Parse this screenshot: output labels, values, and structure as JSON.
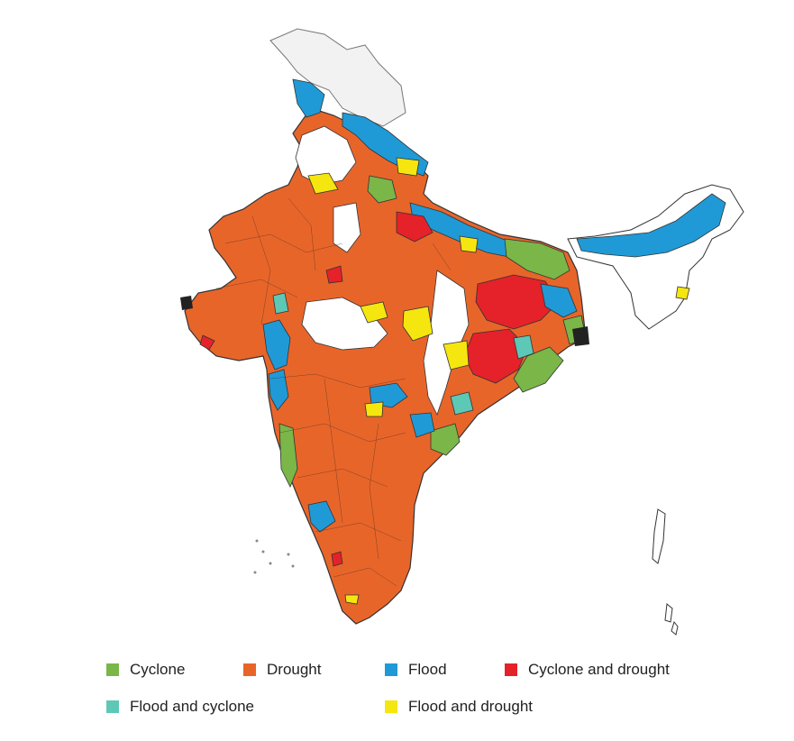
{
  "legend": {
    "items": [
      {
        "key": "cyclone",
        "label": "Cyclone",
        "color": "#7ab648"
      },
      {
        "key": "drought",
        "label": "Drought",
        "color": "#e8652a"
      },
      {
        "key": "flood",
        "label": "Flood",
        "color": "#1f9ad6"
      },
      {
        "key": "cyclone_drought",
        "label": "Cyclone and drought",
        "color": "#e52129"
      },
      {
        "key": "flood_cyclone",
        "label": "Flood and cyclone",
        "color": "#5ec8b6"
      },
      {
        "key": "flood_drought",
        "label": "Flood and drought",
        "color": "#f5e60f"
      }
    ]
  },
  "map": {
    "unaffected_color": "#ffffff",
    "no_data_color": "#f2f2f2",
    "border_color": "#333333",
    "dark_region_color": "#222222"
  }
}
